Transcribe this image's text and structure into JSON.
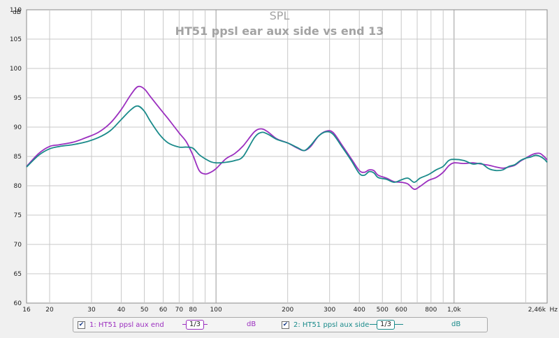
{
  "chart_data": {
    "type": "line",
    "title": "SPL",
    "subtitle": "HT51 ppsl ear aux side vs end 13",
    "ylabel_unit": "dB",
    "xlabel_unit": "Hz",
    "xscale": "log",
    "xlim": [
      16,
      2460
    ],
    "ylim": [
      60,
      110
    ],
    "y_ticks": [
      60,
      65,
      70,
      75,
      80,
      85,
      90,
      95,
      100,
      105,
      110
    ],
    "y_tick_labels": [
      "60",
      "65",
      "70",
      "75",
      "80",
      "85",
      "90",
      "95",
      "100",
      "105",
      "110"
    ],
    "x_ticks_major": [
      16,
      20,
      30,
      40,
      50,
      60,
      70,
      80,
      100,
      200,
      300,
      400,
      500,
      600,
      800,
      1000,
      2460
    ],
    "x_tick_labels": [
      "16",
      "20",
      "30",
      "40",
      "50",
      "60",
      "70",
      "80",
      "100",
      "200",
      "300",
      "400",
      "500",
      "600",
      "800",
      "1,0k",
      "2,46k"
    ],
    "grid": true,
    "legend_placement": "bottom",
    "series": [
      {
        "name": "1: HT51 ppsl aux end",
        "color": "#9b2fbf",
        "smoothing": "1/3",
        "unit": "dB",
        "points": [
          [
            16,
            83.3
          ],
          [
            18,
            85.5
          ],
          [
            20,
            86.7
          ],
          [
            22,
            87.0
          ],
          [
            25,
            87.4
          ],
          [
            28,
            88.1
          ],
          [
            32,
            89.1
          ],
          [
            36,
            90.7
          ],
          [
            40,
            93.0
          ],
          [
            44,
            95.6
          ],
          [
            47,
            96.9
          ],
          [
            50,
            96.5
          ],
          [
            53,
            95.2
          ],
          [
            58,
            93.2
          ],
          [
            63,
            91.4
          ],
          [
            70,
            89.0
          ],
          [
            75,
            87.5
          ],
          [
            80,
            85.2
          ],
          [
            85,
            82.6
          ],
          [
            90,
            82.0
          ],
          [
            95,
            82.3
          ],
          [
            100,
            82.9
          ],
          [
            110,
            84.6
          ],
          [
            120,
            85.5
          ],
          [
            130,
            86.8
          ],
          [
            145,
            89.2
          ],
          [
            155,
            89.7
          ],
          [
            165,
            89.2
          ],
          [
            180,
            88.0
          ],
          [
            200,
            87.3
          ],
          [
            220,
            86.4
          ],
          [
            235,
            86.0
          ],
          [
            250,
            86.7
          ],
          [
            270,
            88.5
          ],
          [
            290,
            89.3
          ],
          [
            310,
            89.1
          ],
          [
            340,
            86.8
          ],
          [
            370,
            84.6
          ],
          [
            400,
            82.6
          ],
          [
            420,
            82.3
          ],
          [
            440,
            82.7
          ],
          [
            460,
            82.6
          ],
          [
            480,
            81.8
          ],
          [
            520,
            81.3
          ],
          [
            560,
            80.7
          ],
          [
            600,
            80.6
          ],
          [
            640,
            80.3
          ],
          [
            680,
            79.4
          ],
          [
            720,
            79.9
          ],
          [
            780,
            80.9
          ],
          [
            840,
            81.4
          ],
          [
            900,
            82.3
          ],
          [
            950,
            83.4
          ],
          [
            1000,
            83.9
          ],
          [
            1100,
            83.8
          ],
          [
            1200,
            83.9
          ],
          [
            1300,
            83.7
          ],
          [
            1400,
            83.5
          ],
          [
            1500,
            83.2
          ],
          [
            1600,
            83.0
          ],
          [
            1700,
            83.2
          ],
          [
            1800,
            83.5
          ],
          [
            1900,
            84.2
          ],
          [
            2000,
            84.7
          ],
          [
            2100,
            85.2
          ],
          [
            2200,
            85.5
          ],
          [
            2300,
            85.5
          ],
          [
            2400,
            84.9
          ],
          [
            2460,
            84.4
          ]
        ]
      },
      {
        "name": "2: HT51 ppsl aux side",
        "color": "#1a8a8a",
        "smoothing": "1/3",
        "unit": "dB",
        "points": [
          [
            16,
            83.2
          ],
          [
            18,
            85.2
          ],
          [
            20,
            86.3
          ],
          [
            22,
            86.7
          ],
          [
            25,
            87.0
          ],
          [
            28,
            87.4
          ],
          [
            32,
            88.2
          ],
          [
            36,
            89.4
          ],
          [
            40,
            91.3
          ],
          [
            44,
            93.0
          ],
          [
            47,
            93.6
          ],
          [
            50,
            92.7
          ],
          [
            53,
            91.0
          ],
          [
            58,
            88.7
          ],
          [
            63,
            87.3
          ],
          [
            70,
            86.6
          ],
          [
            75,
            86.6
          ],
          [
            80,
            86.4
          ],
          [
            85,
            85.3
          ],
          [
            90,
            84.6
          ],
          [
            95,
            84.1
          ],
          [
            100,
            83.9
          ],
          [
            110,
            84.0
          ],
          [
            120,
            84.3
          ],
          [
            130,
            85.0
          ],
          [
            145,
            88.2
          ],
          [
            155,
            89.1
          ],
          [
            165,
            88.8
          ],
          [
            180,
            87.9
          ],
          [
            200,
            87.3
          ],
          [
            220,
            86.5
          ],
          [
            235,
            86.0
          ],
          [
            250,
            86.9
          ],
          [
            270,
            88.5
          ],
          [
            290,
            89.2
          ],
          [
            310,
            88.8
          ],
          [
            340,
            86.5
          ],
          [
            370,
            84.3
          ],
          [
            400,
            82.1
          ],
          [
            420,
            81.8
          ],
          [
            440,
            82.4
          ],
          [
            460,
            82.2
          ],
          [
            480,
            81.4
          ],
          [
            520,
            81.1
          ],
          [
            560,
            80.6
          ],
          [
            600,
            81.0
          ],
          [
            640,
            81.3
          ],
          [
            680,
            80.6
          ],
          [
            720,
            81.3
          ],
          [
            780,
            81.9
          ],
          [
            840,
            82.7
          ],
          [
            900,
            83.3
          ],
          [
            950,
            84.3
          ],
          [
            1000,
            84.5
          ],
          [
            1100,
            84.3
          ],
          [
            1200,
            83.7
          ],
          [
            1300,
            83.8
          ],
          [
            1400,
            82.9
          ],
          [
            1500,
            82.6
          ],
          [
            1600,
            82.7
          ],
          [
            1700,
            83.3
          ],
          [
            1800,
            83.6
          ],
          [
            1900,
            84.3
          ],
          [
            2000,
            84.7
          ],
          [
            2100,
            84.9
          ],
          [
            2200,
            85.2
          ],
          [
            2300,
            85.0
          ],
          [
            2400,
            84.5
          ],
          [
            2460,
            84.0
          ]
        ]
      }
    ]
  }
}
